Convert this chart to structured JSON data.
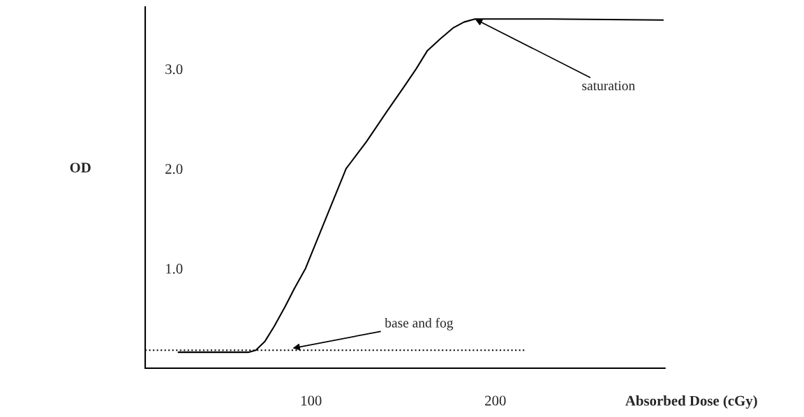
{
  "chart_data": {
    "type": "line",
    "xlabel": "Absorbed Dose (cGy)",
    "ylabel": "OD",
    "xlim": [
      10,
      292
    ],
    "ylim": [
      0,
      3.62
    ],
    "xticks": [
      100,
      200
    ],
    "yticks": [
      {
        "value": 1,
        "label": "1.0"
      },
      {
        "value": 2,
        "label": "2.0"
      },
      {
        "value": 3,
        "label": "3.0"
      }
    ],
    "grid": false,
    "legend": false,
    "series": [
      {
        "color": "#000000",
        "line_style": "solid",
        "x": [
          28,
          66,
          70,
          75,
          80,
          86,
          91,
          97,
          108,
          119,
          130,
          141,
          150,
          157,
          163,
          170,
          177,
          183,
          189,
          230,
          291
        ],
        "values": [
          0.16,
          0.16,
          0.18,
          0.27,
          0.42,
          0.62,
          0.8,
          1.0,
          1.5,
          2.0,
          2.27,
          2.57,
          2.81,
          3.0,
          3.18,
          3.3,
          3.41,
          3.47,
          3.5,
          3.5,
          3.49
        ]
      },
      {
        "color": "#000000",
        "line_style": "dotted",
        "x": [
          10,
          217
        ],
        "values": [
          0.18,
          0.18
        ]
      }
    ],
    "annotations": [
      {
        "text": "saturation",
        "x": 189,
        "y": 3.5
      },
      {
        "text": "base and fog",
        "x": 90,
        "y": 0.2
      }
    ]
  }
}
